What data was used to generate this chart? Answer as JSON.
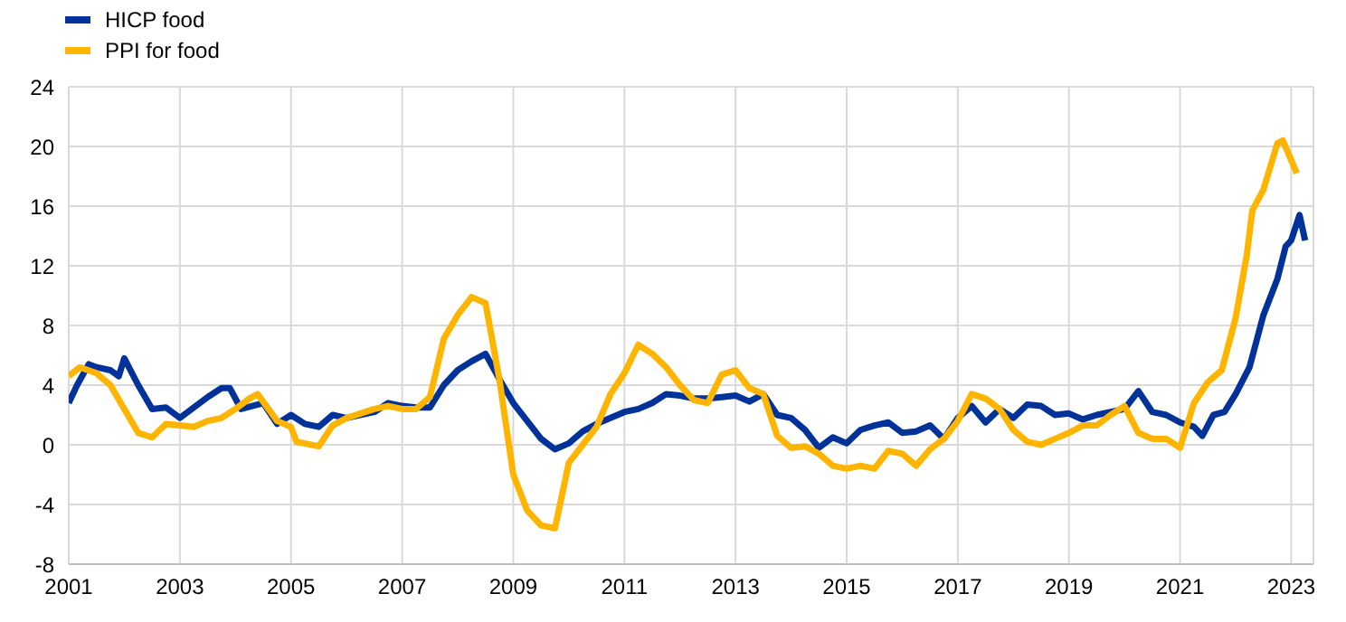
{
  "chart_data": {
    "type": "line",
    "xlim": [
      2001,
      2023.4
    ],
    "xticks": [
      {
        "value": 2001,
        "label": "2001"
      },
      {
        "value": 2003,
        "label": "2003"
      },
      {
        "value": 2005,
        "label": "2005"
      },
      {
        "value": 2007,
        "label": "2007"
      },
      {
        "value": 2009,
        "label": "2009"
      },
      {
        "value": 2011,
        "label": "2011"
      },
      {
        "value": 2013,
        "label": "2013"
      },
      {
        "value": 2015,
        "label": "2015"
      },
      {
        "value": 2017,
        "label": "2017"
      },
      {
        "value": 2019,
        "label": "2019"
      },
      {
        "value": 2021,
        "label": "2021"
      },
      {
        "value": 2023,
        "label": "2023"
      }
    ],
    "ylim": [
      -8,
      24
    ],
    "yticks": [
      -8,
      -4,
      0,
      4,
      8,
      12,
      16,
      20,
      24
    ],
    "grid": true,
    "legend": "top left",
    "marker": "none",
    "line_style": "solid",
    "series": [
      {
        "name": "HICP food",
        "color": "#003299",
        "x": [
          2001,
          2001.15,
          2001.36,
          2001.5,
          2001.75,
          2001.9,
          2002,
          2002.25,
          2002.5,
          2002.75,
          2003,
          2003.25,
          2003.5,
          2003.75,
          2003.9,
          2004.1,
          2004.5,
          2004.75,
          2005,
          2005.25,
          2005.5,
          2005.75,
          2006,
          2006.5,
          2006.75,
          2007,
          2007.25,
          2007.5,
          2007.75,
          2008,
          2008.25,
          2008.5,
          2008.75,
          2009,
          2009.25,
          2009.5,
          2009.75,
          2010,
          2010.25,
          2010.5,
          2010.75,
          2011,
          2011.25,
          2011.5,
          2011.75,
          2012,
          2012.25,
          2012.5,
          2012.75,
          2013,
          2013.25,
          2013.5,
          2013.75,
          2014,
          2014.25,
          2014.5,
          2014.75,
          2015,
          2015.25,
          2015.5,
          2015.75,
          2016,
          2016.25,
          2016.5,
          2016.75,
          2017,
          2017.25,
          2017.5,
          2017.75,
          2018,
          2018.25,
          2018.5,
          2018.75,
          2019,
          2019.25,
          2019.5,
          2019.75,
          2020,
          2020.25,
          2020.5,
          2020.75,
          2021,
          2021.25,
          2021.4,
          2021.6,
          2021.8,
          2022,
          2022.25,
          2022.5,
          2022.75,
          2022.9,
          2023,
          2023.15,
          2023.25
        ],
        "values": [
          2.8,
          4.0,
          5.4,
          5.2,
          5.0,
          4.6,
          5.8,
          4.0,
          2.4,
          2.5,
          1.8,
          2.5,
          3.2,
          3.8,
          3.8,
          2.4,
          2.8,
          1.4,
          2.0,
          1.4,
          1.2,
          2.0,
          1.8,
          2.2,
          2.8,
          2.6,
          2.5,
          2.5,
          4.0,
          5.0,
          5.6,
          6.1,
          4.4,
          2.8,
          1.6,
          0.4,
          -0.3,
          0.1,
          0.9,
          1.4,
          1.8,
          2.2,
          2.4,
          2.8,
          3.4,
          3.3,
          3.1,
          3.1,
          3.2,
          3.3,
          2.9,
          3.4,
          2.0,
          1.8,
          1.0,
          -0.2,
          0.5,
          0.1,
          1.0,
          1.3,
          1.5,
          0.8,
          0.9,
          1.3,
          0.4,
          1.8,
          2.6,
          1.5,
          2.4,
          1.8,
          2.7,
          2.6,
          2.0,
          2.1,
          1.7,
          2.0,
          2.2,
          2.4,
          3.6,
          2.2,
          2.0,
          1.5,
          1.2,
          0.6,
          2.0,
          2.2,
          3.4,
          5.2,
          8.7,
          11.1,
          13.3,
          13.7,
          15.4,
          13.7
        ]
      },
      {
        "name": "PPI for food",
        "color": "#ffb400",
        "x": [
          2001,
          2001.2,
          2001.5,
          2001.75,
          2002,
          2002.25,
          2002.5,
          2002.75,
          2003,
          2003.25,
          2003.5,
          2003.75,
          2004,
          2004.25,
          2004.4,
          2004.75,
          2005,
          2005.1,
          2005.5,
          2005.75,
          2006,
          2006.5,
          2006.75,
          2007,
          2007.25,
          2007.5,
          2007.75,
          2008,
          2008.25,
          2008.5,
          2008.75,
          2009,
          2009.25,
          2009.5,
          2009.75,
          2010,
          2010.25,
          2010.5,
          2010.75,
          2011,
          2011.25,
          2011.5,
          2011.75,
          2012,
          2012.25,
          2012.5,
          2012.75,
          2013,
          2013.25,
          2013.5,
          2013.75,
          2014,
          2014.25,
          2014.5,
          2014.75,
          2015,
          2015.25,
          2015.5,
          2015.75,
          2016,
          2016.25,
          2016.5,
          2016.75,
          2017,
          2017.25,
          2017.5,
          2017.75,
          2018,
          2018.25,
          2018.5,
          2018.75,
          2019,
          2019.25,
          2019.5,
          2019.75,
          2020,
          2020.25,
          2020.5,
          2020.75,
          2021,
          2021.25,
          2021.5,
          2021.75,
          2022,
          2022.2,
          2022.3,
          2022.5,
          2022.75,
          2022.85,
          2023.1
        ],
        "values": [
          4.6,
          5.2,
          4.8,
          4.0,
          2.4,
          0.8,
          0.5,
          1.4,
          1.3,
          1.2,
          1.6,
          1.8,
          2.4,
          3.1,
          3.4,
          1.6,
          1.2,
          0.2,
          -0.1,
          1.3,
          1.8,
          2.4,
          2.6,
          2.4,
          2.4,
          3.2,
          7.1,
          8.7,
          9.9,
          9.5,
          4.4,
          -2.0,
          -4.4,
          -5.4,
          -5.6,
          -1.2,
          0.0,
          1.2,
          3.4,
          4.8,
          6.7,
          6.1,
          5.2,
          4.0,
          3.0,
          2.8,
          4.7,
          5.0,
          3.8,
          3.4,
          0.6,
          -0.2,
          -0.1,
          -0.6,
          -1.4,
          -1.6,
          -1.4,
          -1.6,
          -0.4,
          -0.6,
          -1.4,
          -0.3,
          0.4,
          1.6,
          3.4,
          3.1,
          2.4,
          1.0,
          0.2,
          0.0,
          0.4,
          0.8,
          1.3,
          1.3,
          2.0,
          2.6,
          0.8,
          0.4,
          0.4,
          -0.2,
          2.8,
          4.2,
          5.0,
          8.5,
          12.7,
          15.7,
          17.1,
          20.2,
          20.4,
          18.2
        ]
      }
    ]
  }
}
